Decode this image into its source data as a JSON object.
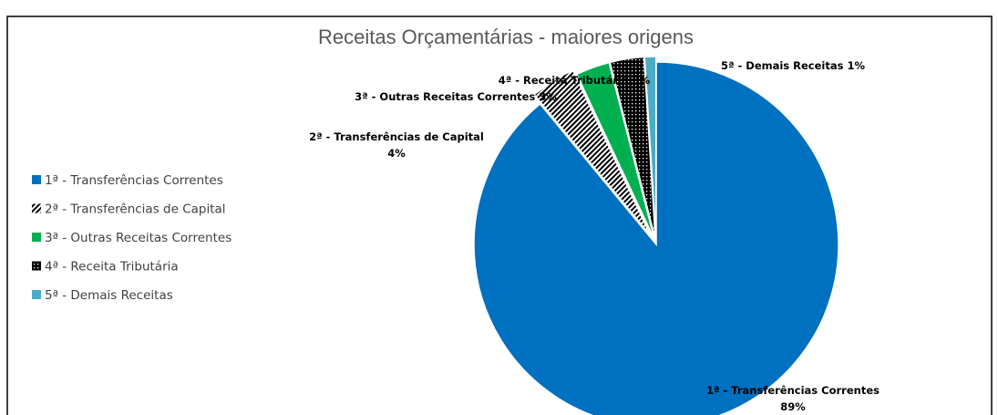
{
  "chart_data": {
    "type": "pie",
    "title": "Receitas Orçamentárias - maiores origens",
    "categories": [
      "1ª - Transferências Correntes",
      "2ª - Transferências de Capital",
      "3ª - Outras Receitas Correntes",
      "4ª - Receita Tributária",
      "5ª - Demais Receitas"
    ],
    "values": [
      89,
      4,
      3,
      3,
      1
    ],
    "value_labels": [
      "1ª - Transferências Correntes 89%",
      "2ª - Transferências de Capital 4%",
      "3ª - Outras Receitas Correntes 3%",
      "4ª - Receita Tributária 3%",
      "5ª - Demais Receitas 1%"
    ],
    "colors": [
      "#0070c0",
      "#00a651",
      "#00b050",
      "#cc00cc",
      "#4bacc6"
    ],
    "patterns": [
      null,
      "stripes",
      null,
      "dots",
      null
    ],
    "legend": "left"
  }
}
